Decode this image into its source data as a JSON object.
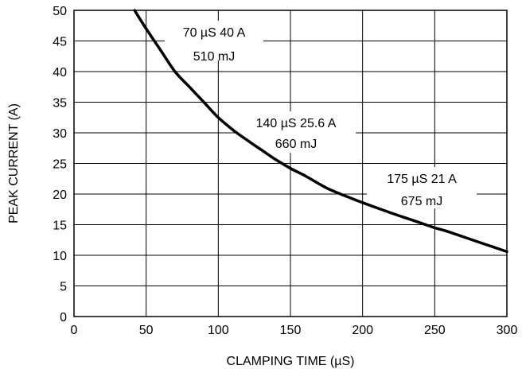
{
  "chart_data": {
    "type": "line",
    "xlabel": "CLAMPING TIME (µS)",
    "ylabel": "PEAK CURRENT (A)",
    "xlim": [
      0,
      300
    ],
    "ylim": [
      0,
      50
    ],
    "xticks": [
      "0",
      "50",
      "100",
      "150",
      "200",
      "250",
      "300"
    ],
    "yticks": [
      "0",
      "5",
      "10",
      "15",
      "20",
      "25",
      "30",
      "35",
      "40",
      "45",
      "50"
    ],
    "grid": true,
    "series": [
      {
        "x": [
          42,
          50,
          60,
          70,
          80,
          90,
          100,
          110,
          120,
          130,
          140,
          150,
          160,
          175,
          190,
          200,
          220,
          240,
          250,
          260,
          280,
          300
        ],
        "y": [
          50,
          47,
          43.5,
          40,
          37.5,
          35,
          32.5,
          30.5,
          28.8,
          27.2,
          25.6,
          24.2,
          23.0,
          21.0,
          19.5,
          18.6,
          16.9,
          15.3,
          14.5,
          13.8,
          12.2,
          10.6
        ],
        "color": "#000000"
      }
    ],
    "annotations": [
      {
        "line1": "70 µS 40 A",
        "line2": "510 mJ",
        "x": 70,
        "y": 40
      },
      {
        "line1": "140 µS 25.6 A",
        "line2": "660 mJ",
        "x": 140,
        "y": 25.6
      },
      {
        "line1": "175 µS 21 A",
        "line2": "675 mJ",
        "x": 175,
        "y": 21
      }
    ]
  }
}
